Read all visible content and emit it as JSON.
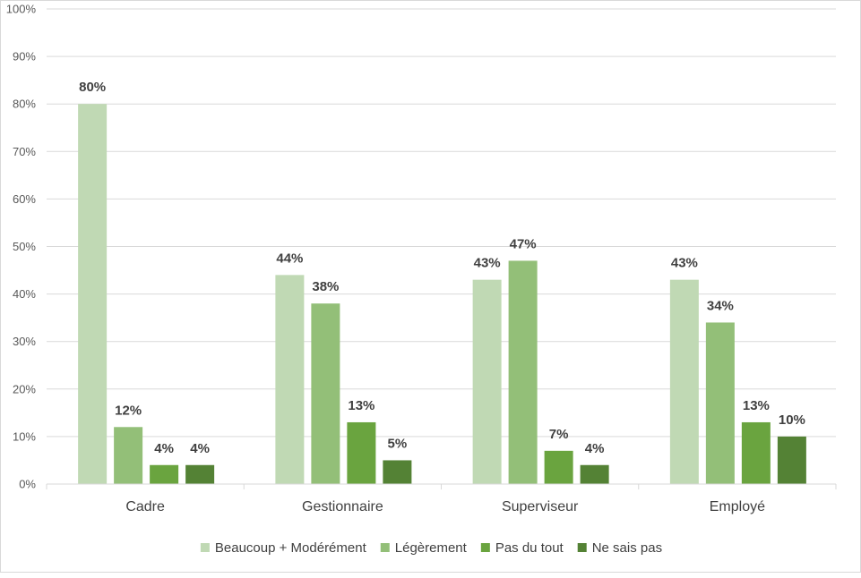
{
  "chart_data": {
    "type": "bar",
    "title": "",
    "xlabel": "",
    "ylabel": "",
    "ylim": [
      0,
      100
    ],
    "yticks": [
      0,
      10,
      20,
      30,
      40,
      50,
      60,
      70,
      80,
      90,
      100
    ],
    "ytick_labels": [
      "0%",
      "10%",
      "20%",
      "30%",
      "40%",
      "50%",
      "60%",
      "70%",
      "80%",
      "90%",
      "100%"
    ],
    "grid": true,
    "legend_position": "bottom",
    "categories": [
      "Cadre",
      "Gestionnaire",
      "Superviseur",
      "Employé"
    ],
    "series": [
      {
        "name": "Beaucoup + Modérément",
        "color": "#c0d9b4",
        "values": [
          80,
          44,
          43,
          43
        ],
        "labels": [
          "80%",
          "44%",
          "43%",
          "43%"
        ]
      },
      {
        "name": "Légèrement",
        "color": "#93bf78",
        "values": [
          12,
          38,
          47,
          34
        ],
        "labels": [
          "12%",
          "38%",
          "47%",
          "34%"
        ]
      },
      {
        "name": "Pas du tout",
        "color": "#6aa43f",
        "values": [
          4,
          13,
          7,
          13
        ],
        "labels": [
          "4%",
          "13%",
          "7%",
          "13%"
        ]
      },
      {
        "name": "Ne sais pas",
        "color": "#548235",
        "values": [
          4,
          5,
          4,
          10
        ],
        "labels": [
          "4%",
          "5%",
          "4%",
          "10%"
        ]
      }
    ]
  }
}
